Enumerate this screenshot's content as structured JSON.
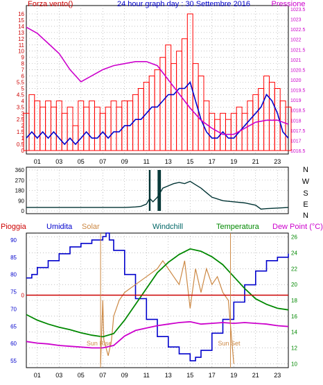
{
  "header": {
    "left_label": "Forza vento()",
    "title": "24 hour graph day : 30 Settembre 2016",
    "right_label": "Pressione"
  },
  "wind_dir_labels": [
    "N",
    "W",
    "S",
    "E",
    "N"
  ],
  "bottom_header": {
    "pioggia": "Pioggia",
    "umidita": "Umidita",
    "solar": "Solar",
    "windchill": "Windchill",
    "temperatura": "Temperatura",
    "dewpoint": "Dew Point (°C)"
  },
  "annotations": {
    "sunrise": "Sun Rise",
    "sunset": "Sun Set"
  },
  "colors": {
    "wind_gust": "#ff0000",
    "wind_avg": "#0000cc",
    "pressure": "#cc00cc",
    "direction": "#003333",
    "humidity": "#0000cc",
    "solar": "#cc8844",
    "temperature": "#008800",
    "dewpoint": "#cc00cc",
    "rain": "#cc0000"
  },
  "chart_data": [
    {
      "type": "line",
      "hour_ticks": [
        "01",
        "03",
        "05",
        "07",
        "09",
        "11",
        "13",
        "15",
        "17",
        "19",
        "21",
        "23"
      ],
      "left_axis": {
        "ylim": [
          0,
          16.5
        ],
        "ticks": [
          "0",
          "0.5",
          "1",
          "1.5",
          "2",
          "2.5",
          "3",
          "3.5",
          "4",
          "4.5",
          "5",
          "5.5",
          "6",
          "7",
          "8",
          "9",
          "10",
          "11",
          "12",
          "13",
          "14",
          "15",
          "16"
        ]
      },
      "right_axis": {
        "ylim": [
          1016.5,
          1023.5
        ],
        "ticks": [
          "1016.5",
          "1017",
          "1017.5",
          "1018",
          "1018.5",
          "1019",
          "1019.5",
          "1020",
          "1020.5",
          "1021",
          "1021.5",
          "1022",
          "1022.5",
          "1023",
          "1023.5"
        ]
      },
      "series": [
        {
          "name": "Forza vento()",
          "axis": "left",
          "style": "gust",
          "x": [
            0,
            0.5,
            1,
            1.5,
            2,
            2.5,
            3,
            3.5,
            4,
            4.5,
            5,
            5.5,
            6,
            6.5,
            7,
            7.5,
            8,
            8.5,
            9,
            9.5,
            10,
            10.5,
            11,
            11.5,
            12,
            12.5,
            13,
            13.5,
            14,
            14.5,
            15,
            15.5,
            16,
            16.5,
            17,
            17.5,
            18,
            18.5,
            19,
            19.5,
            20,
            20.5,
            21,
            21.5,
            22,
            22.5,
            23,
            23.5,
            24
          ],
          "y": [
            3,
            4.5,
            4,
            3.5,
            4,
            3.5,
            4,
            3,
            3.5,
            2,
            4,
            3.5,
            4,
            3.5,
            3,
            3.5,
            4,
            3.5,
            4,
            4,
            4.5,
            5,
            5.5,
            6,
            7,
            9,
            11,
            8,
            10,
            12,
            16,
            8,
            6,
            4,
            3,
            2.5,
            3,
            2.5,
            3,
            3.5,
            3,
            4,
            4.5,
            5,
            6,
            5.5,
            5,
            4,
            3.5
          ]
        },
        {
          "name": "wind average",
          "axis": "left",
          "style": "avg",
          "x": [
            0,
            0.5,
            1,
            1.5,
            2,
            2.5,
            3,
            3.5,
            4,
            4.5,
            5,
            5.5,
            6,
            6.5,
            7,
            7.5,
            8,
            8.5,
            9,
            9.5,
            10,
            10.5,
            11,
            11.5,
            12,
            12.5,
            13,
            13.5,
            14,
            14.5,
            15,
            15.5,
            16,
            16.5,
            17,
            17.5,
            18,
            18.5,
            19,
            19.5,
            20,
            20.5,
            21,
            21.5,
            22,
            22.5,
            23,
            23.5,
            24
          ],
          "y": [
            1,
            1.5,
            1,
            1.5,
            1,
            1.5,
            1,
            0.5,
            1,
            0.5,
            1,
            1.5,
            1,
            1,
            1.5,
            1,
            1.5,
            1.5,
            2,
            2,
            2.5,
            2.5,
            3,
            3.5,
            3.5,
            4,
            4.5,
            4.5,
            5,
            5,
            5.5,
            4,
            2.5,
            1.5,
            1,
            1,
            1.5,
            1,
            1,
            1.5,
            2,
            2.5,
            3,
            3.5,
            4.5,
            4,
            3,
            1.5,
            1
          ]
        },
        {
          "name": "Pressione",
          "axis": "right",
          "style": "pressure",
          "x": [
            0,
            1,
            2,
            3,
            4,
            5,
            6,
            7,
            8,
            9,
            10,
            11,
            12,
            13,
            14,
            15,
            16,
            17,
            18,
            19,
            20,
            21,
            22,
            23,
            24
          ],
          "y": [
            1022.6,
            1022.3,
            1021.8,
            1021.3,
            1020.5,
            1019.9,
            1020.2,
            1020.5,
            1020.7,
            1020.8,
            1020.9,
            1020.9,
            1020.7,
            1020.0,
            1019.3,
            1018.6,
            1018.0,
            1017.6,
            1017.3,
            1017.3,
            1017.6,
            1017.9,
            1018.0,
            1018.0,
            1017.8
          ]
        }
      ]
    },
    {
      "type": "line",
      "ylim": [
        0,
        360
      ],
      "ticks": [
        "0",
        "90",
        "180",
        "270",
        "360"
      ],
      "series": [
        {
          "name": "wind direction",
          "axis": "left",
          "style": "direction",
          "x": [
            0,
            1,
            2,
            3,
            4,
            5,
            6,
            7,
            8,
            9,
            10,
            10.5,
            11,
            11.3,
            11.6,
            12,
            12.2,
            12.5,
            13,
            13.5,
            14,
            14.5,
            15,
            15.5,
            16,
            16.5,
            17,
            18,
            19,
            20,
            21,
            21.5,
            22,
            23,
            24
          ],
          "y": [
            30,
            30,
            30,
            30,
            30,
            30,
            30,
            30,
            30,
            30,
            35,
            40,
            60,
            110,
            80,
            120,
            150,
            200,
            220,
            240,
            250,
            240,
            260,
            230,
            200,
            160,
            120,
            90,
            80,
            70,
            50,
            15,
            20,
            25,
            30
          ]
        },
        {
          "name": "direction spikes",
          "axis": "left",
          "style": "spike",
          "x": [
            11.3,
            12.1,
            12.25
          ],
          "y": [
            360,
            360,
            360
          ]
        }
      ]
    },
    {
      "type": "line",
      "hour_ticks": [
        "01",
        "03",
        "05",
        "07",
        "09",
        "11",
        "13",
        "15",
        "17",
        "19",
        "21",
        "23"
      ],
      "left_axis": {
        "label": "Umidita",
        "ylim": [
          53,
          92
        ],
        "ticks": [
          "55",
          "60",
          "65",
          "70",
          "75",
          "80",
          "85",
          "90"
        ],
        "zero_label": "0",
        "zero_at": 74
      },
      "right_axis": {
        "label": "Temperatura",
        "ylim": [
          9.5,
          26.5
        ],
        "ticks": [
          "10",
          "12",
          "14",
          "16",
          "18",
          "20",
          "22",
          "24",
          "26"
        ]
      },
      "series": [
        {
          "name": "Umidita",
          "axis": "left",
          "style": "humidity",
          "x": [
            0,
            0.5,
            1,
            2,
            3,
            4,
            5,
            6,
            7,
            7.3,
            7.6,
            8,
            9,
            10,
            11,
            12,
            13,
            14,
            15,
            15.5,
            16,
            17,
            18,
            19,
            20,
            21,
            22,
            23,
            24
          ],
          "y": [
            79,
            80,
            82,
            84,
            86,
            88,
            89,
            90,
            91,
            92,
            90,
            87,
            80,
            73,
            67,
            62,
            59,
            57,
            55,
            56,
            58,
            63,
            67,
            72,
            77,
            81,
            84,
            85,
            86
          ]
        },
        {
          "name": "Solar",
          "axis": "right",
          "style": "solar",
          "x": [
            6.8,
            7.0,
            7.1,
            7.3,
            7.5,
            7.8,
            8,
            8.5,
            9,
            10,
            11,
            12,
            12.5,
            13,
            13.5,
            14,
            14.5,
            15,
            15.5,
            16,
            16.5,
            17,
            17.5,
            18,
            18.5,
            19
          ],
          "y": [
            10,
            18,
            13,
            12,
            11,
            13,
            16,
            18,
            19,
            20,
            21,
            22,
            23,
            22,
            21,
            20,
            23,
            17,
            22,
            19,
            22,
            20,
            21,
            19,
            18,
            10
          ]
        },
        {
          "name": "Temperatura",
          "axis": "right",
          "style": "temperature",
          "x": [
            0,
            1,
            2,
            3,
            4,
            5,
            6,
            7,
            8,
            9,
            10,
            11,
            12,
            13,
            14,
            15,
            16,
            17,
            18,
            19,
            20,
            21,
            22,
            23,
            24
          ],
          "y": [
            16.2,
            15.5,
            15.0,
            14.6,
            14.3,
            13.9,
            13.6,
            13.4,
            13.8,
            15.5,
            17.5,
            19.5,
            21.5,
            22.8,
            23.8,
            24.5,
            24.2,
            23.5,
            22.5,
            21.0,
            19.5,
            18.2,
            17.5,
            17.0,
            16.8
          ]
        },
        {
          "name": "Dew Point (°C)",
          "axis": "right",
          "style": "dewpoint",
          "x": [
            0,
            1,
            2,
            3,
            4,
            5,
            6,
            7,
            8,
            9,
            10,
            11,
            12,
            13,
            14,
            15,
            16,
            17,
            18,
            19,
            20,
            21,
            22,
            23,
            24
          ],
          "y": [
            12.8,
            12.6,
            12.5,
            12.3,
            12.2,
            12.1,
            12.0,
            12.0,
            12.3,
            13.5,
            14.2,
            14.5,
            14.8,
            15.0,
            15.2,
            15.3,
            15.0,
            15.1,
            15.2,
            15.1,
            15.2,
            15.1,
            15.0,
            14.8,
            14.7
          ]
        },
        {
          "name": "Pioggia",
          "axis": "left",
          "style": "rain",
          "x": [
            0,
            24
          ],
          "y": [
            74,
            74
          ]
        }
      ],
      "markers": [
        {
          "label": "Sun Rise",
          "hour": 6.8
        },
        {
          "label": "Sun Set",
          "hour": 18.7
        }
      ]
    }
  ]
}
